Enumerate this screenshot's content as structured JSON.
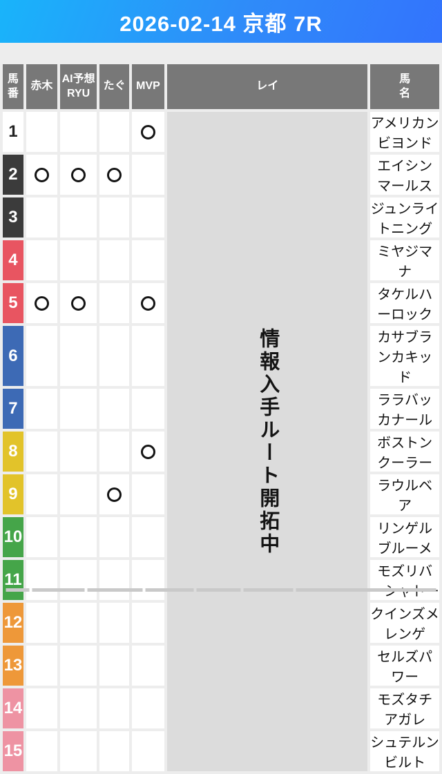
{
  "title_bar": {
    "title": "2026-02-14 京都 7R"
  },
  "table": {
    "headers": {
      "num": "馬\n番",
      "akagi": "赤木",
      "ai_yosou": "AI予想\nRYU",
      "tagu": "たぐ",
      "mvp": "MVP",
      "rei": "レイ",
      "name": "馬\n名"
    },
    "mark_symbol": "○",
    "rei_overlay_text": "情報入手ルート開拓中",
    "rows": [
      {
        "num": "1",
        "bracket": "white",
        "marks": {
          "akagi": "",
          "ai_yosou": "",
          "tagu": "",
          "mvp": "○"
        },
        "name": "アメリカンビヨンド"
      },
      {
        "num": "2",
        "bracket": "black",
        "marks": {
          "akagi": "○",
          "ai_yosou": "○",
          "tagu": "○",
          "mvp": ""
        },
        "name": "エイシンマールス"
      },
      {
        "num": "3",
        "bracket": "black",
        "marks": {
          "akagi": "",
          "ai_yosou": "",
          "tagu": "",
          "mvp": ""
        },
        "name": "ジュンライトニング"
      },
      {
        "num": "4",
        "bracket": "red",
        "marks": {
          "akagi": "",
          "ai_yosou": "",
          "tagu": "",
          "mvp": ""
        },
        "name": "ミヤジマナ"
      },
      {
        "num": "5",
        "bracket": "red",
        "marks": {
          "akagi": "○",
          "ai_yosou": "○",
          "tagu": "",
          "mvp": "○"
        },
        "name": "タケルハーロック"
      },
      {
        "num": "6",
        "bracket": "blue",
        "marks": {
          "akagi": "",
          "ai_yosou": "",
          "tagu": "",
          "mvp": ""
        },
        "name": "カサブランカキッド"
      },
      {
        "num": "7",
        "bracket": "blue",
        "marks": {
          "akagi": "",
          "ai_yosou": "",
          "tagu": "",
          "mvp": ""
        },
        "name": "ララバッカナール"
      },
      {
        "num": "8",
        "bracket": "yellow",
        "marks": {
          "akagi": "",
          "ai_yosou": "",
          "tagu": "",
          "mvp": "○"
        },
        "name": "ボストンクーラー"
      },
      {
        "num": "9",
        "bracket": "yellow",
        "marks": {
          "akagi": "",
          "ai_yosou": "",
          "tagu": "○",
          "mvp": ""
        },
        "name": "ラウルベア"
      },
      {
        "num": "10",
        "bracket": "green",
        "marks": {
          "akagi": "",
          "ai_yosou": "",
          "tagu": "",
          "mvp": ""
        },
        "name": "リンゲルブルーメ"
      },
      {
        "num": "11",
        "bracket": "green",
        "marks": {
          "akagi": "",
          "ai_yosou": "",
          "tagu": "",
          "mvp": ""
        },
        "name": "モズリバーシャトー"
      },
      {
        "num": "12",
        "bracket": "orange",
        "marks": {
          "akagi": "",
          "ai_yosou": "",
          "tagu": "",
          "mvp": ""
        },
        "name": "クインズメレンゲ"
      },
      {
        "num": "13",
        "bracket": "orange",
        "marks": {
          "akagi": "",
          "ai_yosou": "",
          "tagu": "",
          "mvp": ""
        },
        "name": "セルズパワー"
      },
      {
        "num": "14",
        "bracket": "pink",
        "marks": {
          "akagi": "",
          "ai_yosou": "",
          "tagu": "",
          "mvp": ""
        },
        "name": "モズタチアガレ"
      },
      {
        "num": "15",
        "bracket": "pink",
        "marks": {
          "akagi": "",
          "ai_yosou": "",
          "tagu": "",
          "mvp": ""
        },
        "name": "シュテルンビルト"
      }
    ]
  },
  "colors": {
    "title_gradient_start": "#19b4fa",
    "title_gradient_end": "#3373fd",
    "header_cell": "#787878",
    "rei_column": "#dcdcdc",
    "page_background": "#ededed",
    "bracket_white": "#ffffff",
    "bracket_black": "#3b3b3b",
    "bracket_red": "#e85561",
    "bracket_blue": "#3d6ab5",
    "bracket_yellow": "#e2c32a",
    "bracket_green": "#45a549",
    "bracket_orange": "#ee9839",
    "bracket_pink": "#ee93a3"
  }
}
